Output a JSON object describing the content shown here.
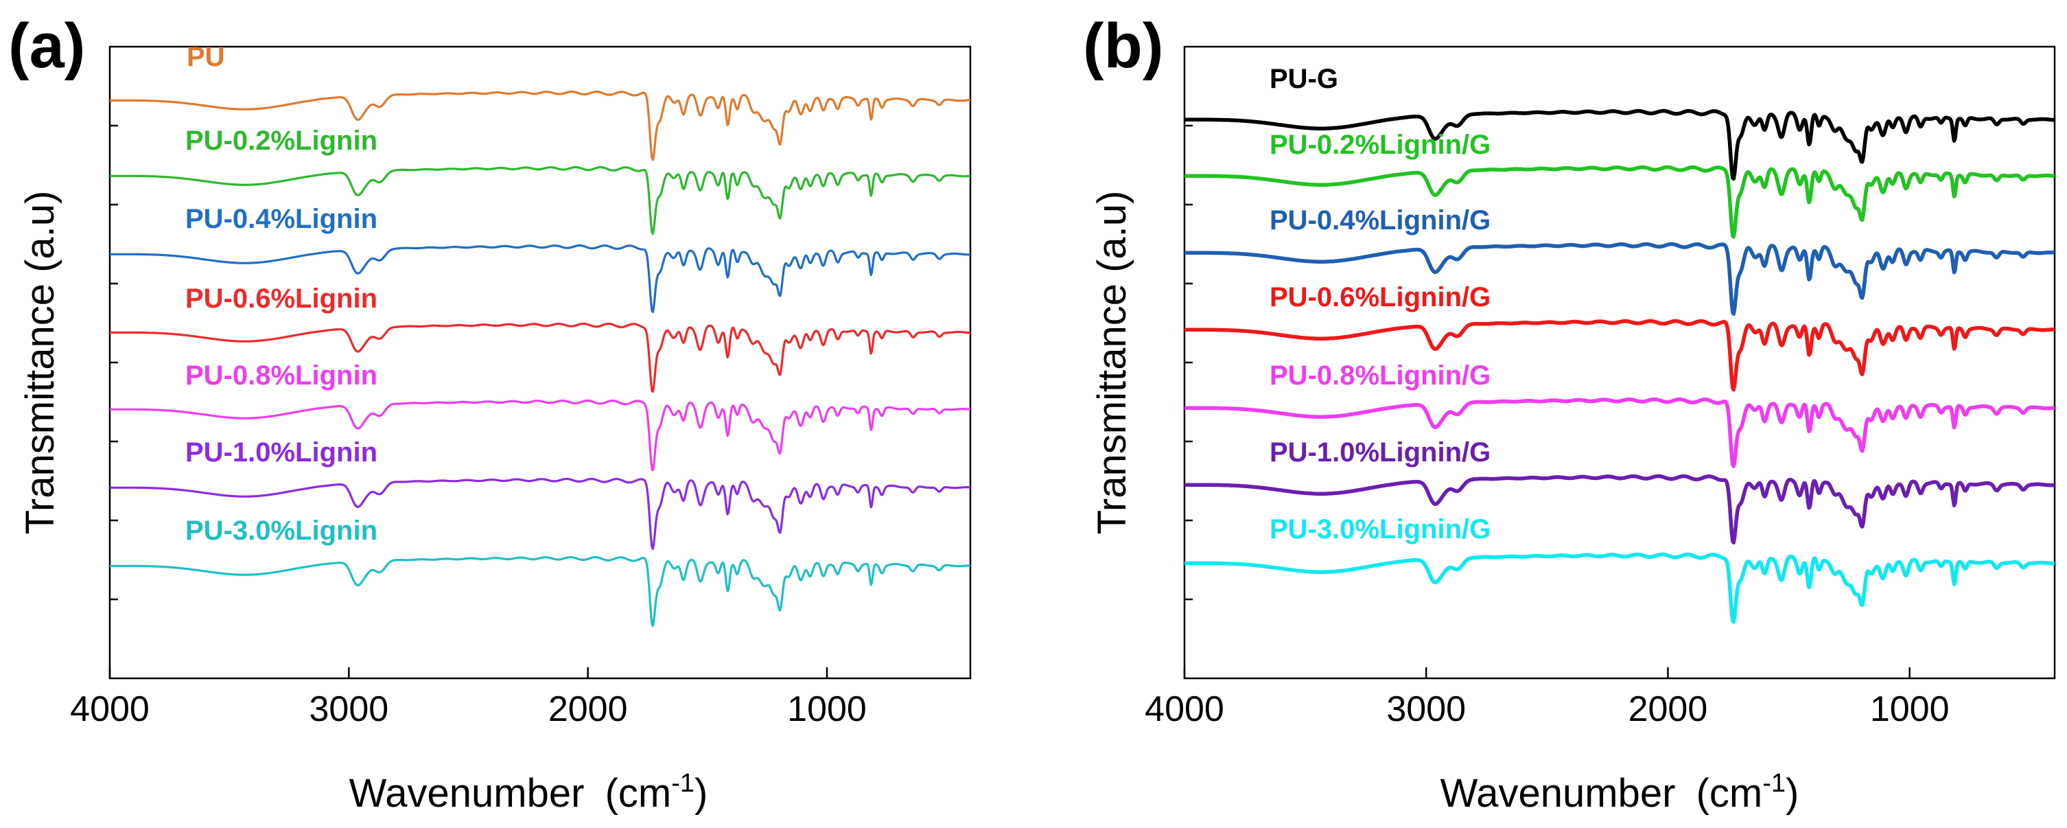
{
  "chart_data": [
    {
      "type": "line",
      "panel_label": "(a)",
      "xlabel": "Wavenumber",
      "xlabel_unit_prefix": "(cm",
      "xlabel_unit_exp": "-1",
      "xlabel_unit_suffix": ")",
      "ylabel": "Transmittance (a.u)",
      "xlim": [
        4000,
        400
      ],
      "x_ticks": [
        4000,
        3000,
        2000,
        1000
      ],
      "x_tick_labels": [
        "4000",
        "3000",
        "2000",
        "1000"
      ],
      "grid": false,
      "stroke_style": "thin",
      "series": [
        {
          "name": "PU",
          "color": "#E07A2E",
          "offset": 7.7
        },
        {
          "name": "PU-0.2%Lignin",
          "color": "#2EB82E",
          "offset": 6.65
        },
        {
          "name": "PU-0.4%Lignin",
          "color": "#1F6FC6",
          "offset": 5.6
        },
        {
          "name": "PU-0.6%Lignin",
          "color": "#EE2A2A",
          "offset": 4.55
        },
        {
          "name": "PU-0.8%Lignin",
          "color": "#EE3DEE",
          "offset": 3.5
        },
        {
          "name": "PU-1.0%Lignin",
          "color": "#8A2BE2",
          "offset": 2.45
        },
        {
          "name": "PU-3.0%Lignin",
          "color": "#1FBFC6",
          "offset": 1.4
        }
      ]
    },
    {
      "type": "line",
      "panel_label": "(b)",
      "xlabel": "Wavenumber",
      "xlabel_unit_prefix": "(cm",
      "xlabel_unit_exp": "-1",
      "xlabel_unit_suffix": ")",
      "ylabel": "Transmittance (a.u)",
      "xlim": [
        4000,
        400
      ],
      "x_ticks": [
        4000,
        3000,
        2000,
        1000
      ],
      "x_tick_labels": [
        "4000",
        "3000",
        "2000",
        "1000"
      ],
      "grid": false,
      "stroke_style": "thick",
      "series": [
        {
          "name": "PU-G",
          "color": "#000000",
          "offset": 7.4
        },
        {
          "name": "PU-0.2%Lignin/G",
          "color": "#22C322",
          "offset": 6.4
        },
        {
          "name": "PU-0.4%Lignin/G",
          "color": "#1F5FB0",
          "offset": 5.4
        },
        {
          "name": "PU-0.6%Lignin/G",
          "color": "#F01818",
          "offset": 4.4
        },
        {
          "name": "PU-0.8%Lignin/G",
          "color": "#F03CF0",
          "offset": 3.4
        },
        {
          "name": "PU-1.0%Lignin/G",
          "color": "#6A1FB0",
          "offset": 2.4
        },
        {
          "name": "PU-3.0%Lignin/G",
          "color": "#10E8F0",
          "offset": 1.4
        }
      ]
    }
  ]
}
